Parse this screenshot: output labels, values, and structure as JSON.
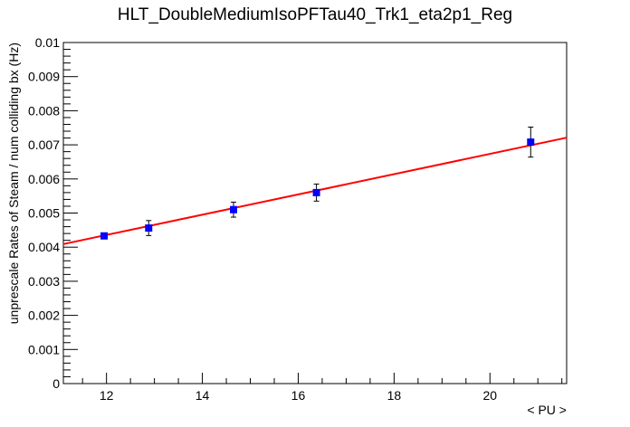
{
  "chart_data": {
    "type": "scatter",
    "title": "HLT_DoubleMediumIsoPFTau40_Trk1_eta2p1_Reg",
    "xlabel": "< PU >",
    "ylabel": "unprescale Rates of Steam / num colliding bx (Hz)",
    "xlim": [
      11.1,
      21.6
    ],
    "ylim": [
      0,
      0.01
    ],
    "x_ticks": [
      12,
      14,
      16,
      18,
      20
    ],
    "x_tick_labels": [
      "12",
      "14",
      "16",
      "18",
      "20"
    ],
    "y_ticks": [
      0,
      0.001,
      0.002,
      0.003,
      0.004,
      0.005,
      0.006,
      0.007,
      0.008,
      0.009,
      0.01
    ],
    "y_tick_labels": [
      "0",
      "0.001",
      "0.002",
      "0.003",
      "0.004",
      "0.005",
      "0.006",
      "0.007",
      "0.008",
      "0.009",
      "0.01"
    ],
    "grid": false,
    "series": [
      {
        "marker_color": "#0000ff",
        "points": [
          {
            "x": 11.95,
            "y": 0.00433,
            "yerr_low": 6e-05,
            "yerr_high": 6e-05
          },
          {
            "x": 12.88,
            "y": 0.00456,
            "yerr_low": 0.00022,
            "yerr_high": 0.00022
          },
          {
            "x": 14.65,
            "y": 0.0051,
            "yerr_low": 0.00022,
            "yerr_high": 0.00022
          },
          {
            "x": 16.38,
            "y": 0.0056,
            "yerr_low": 0.00025,
            "yerr_high": 0.00025
          },
          {
            "x": 20.85,
            "y": 0.00708,
            "yerr_low": 0.00044,
            "yerr_high": 0.00044
          }
        ]
      }
    ],
    "fit": {
      "type": "line",
      "color": "#ff0000",
      "x": [
        11.1,
        21.6
      ],
      "y": [
        0.00409,
        0.00721
      ]
    }
  }
}
